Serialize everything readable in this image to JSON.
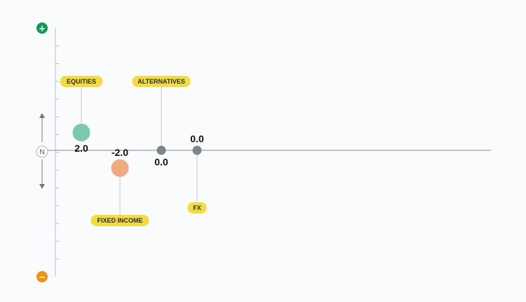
{
  "chart_data": {
    "type": "scatter",
    "y_scale": {
      "top_symbol": "+",
      "bottom_symbol": "−",
      "neutral_label": "N"
    },
    "ylim": [
      -7,
      7
    ],
    "points": [
      {
        "name": "EQUITIES",
        "value": 2.0,
        "value_label": "2.0",
        "color": "#7dc9ad",
        "size": "large",
        "tag_side": "above",
        "value_side": "below"
      },
      {
        "name": "FIXED INCOME",
        "value": -2.0,
        "value_label": "-2.0",
        "color": "#efaa80",
        "size": "large",
        "tag_side": "below",
        "value_side": "above"
      },
      {
        "name": "ALTERNATIVES",
        "value": 0.0,
        "value_label": "0.0",
        "color": "#7e868d",
        "size": "small",
        "tag_side": "above",
        "value_side": "below"
      },
      {
        "name": "FX",
        "value": 0.0,
        "value_label": "0.0",
        "color": "#7e868d",
        "size": "small",
        "tag_side": "below",
        "value_side": "above"
      }
    ],
    "colors": {
      "positive": "#0e9a55",
      "negative": "#f5900e",
      "tag": "#f3dc3c",
      "axis": "#b8bdc3"
    }
  }
}
